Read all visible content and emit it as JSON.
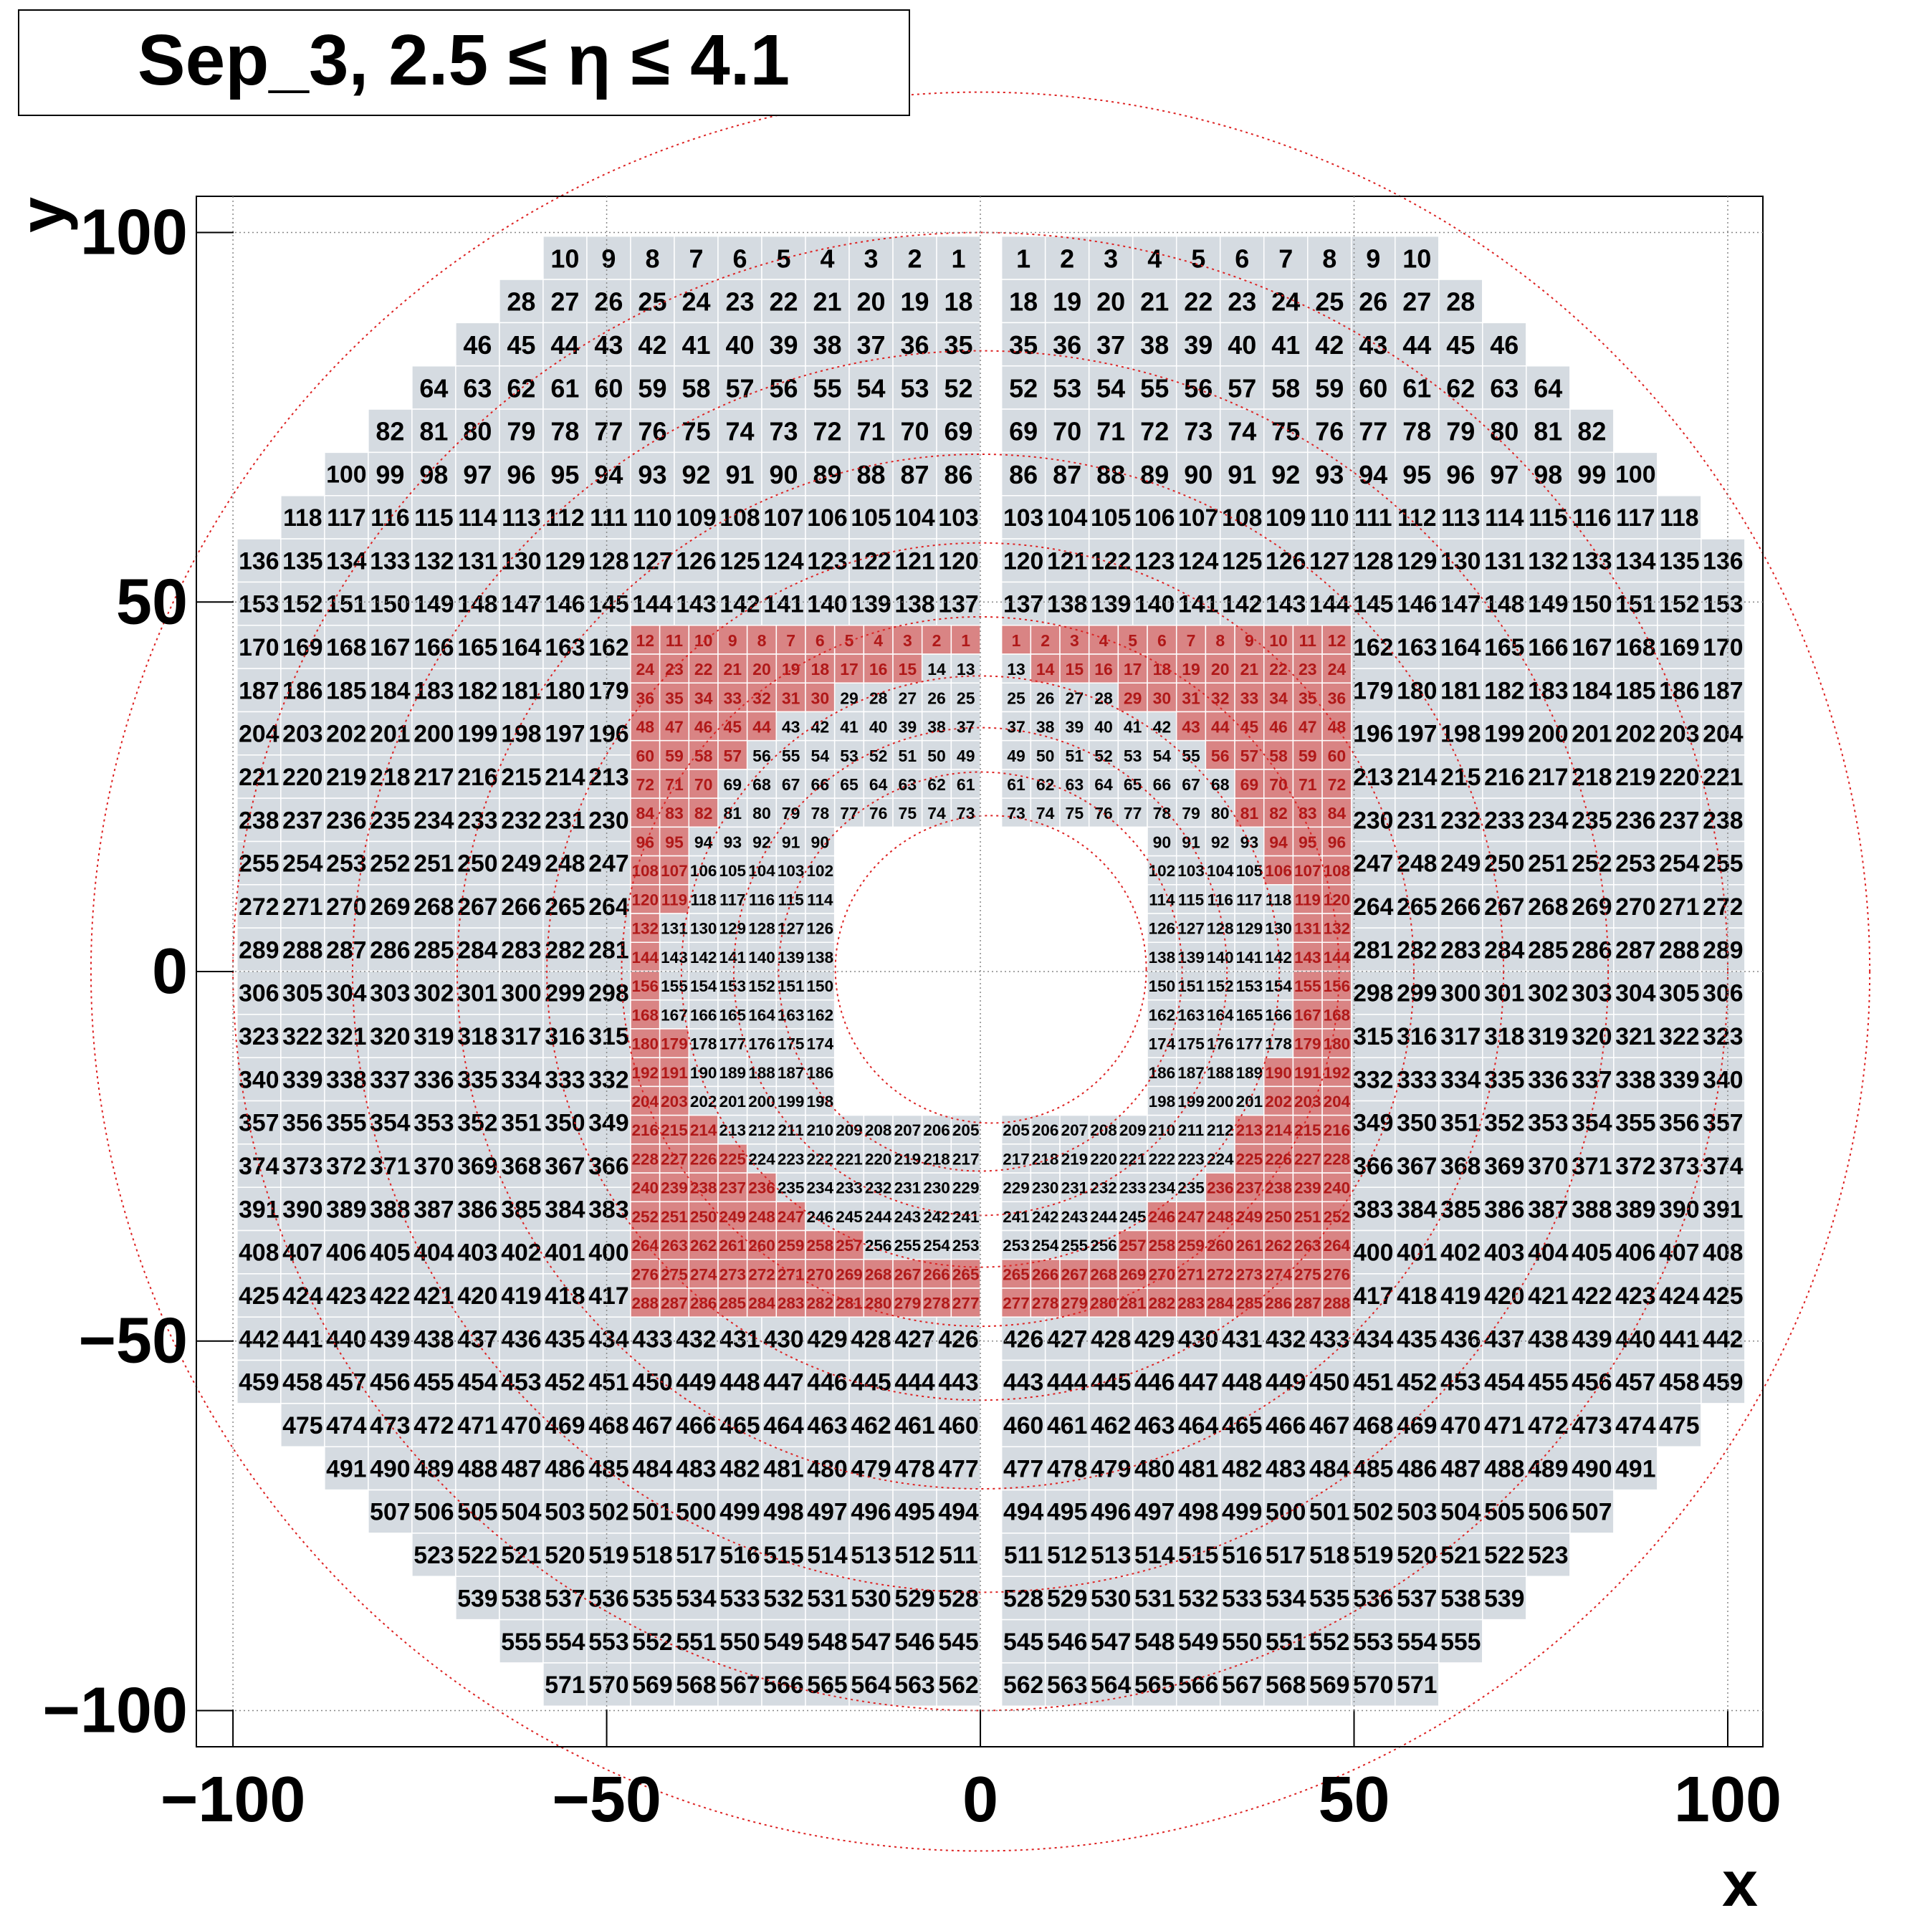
{
  "chart_data": {
    "type": "cellmap",
    "title": "Sep_3, 2.5 ≤ η ≤ 4.1",
    "x_label": "x",
    "y_label": "y",
    "xlim": [
      -104.9,
      104.7
    ],
    "ylim": [
      -104.9,
      104.9
    ],
    "xticks": [
      {
        "value": -100,
        "label": "−100"
      },
      {
        "value": -50,
        "label": "−50"
      },
      0,
      50,
      100
    ],
    "yticks": [
      {
        "value": -100,
        "label": "−100"
      },
      {
        "value": -50,
        "label": "−50"
      },
      0,
      50,
      100
    ],
    "grid": true,
    "cell_color": "#d5dbe1",
    "highlight_color": "#d98484",
    "text_color": "#000000",
    "highlight_text_color": "#b01818",
    "ring_color": "#dd2222",
    "large_left": [
      [
        10,
        9,
        8,
        7,
        6,
        5,
        4,
        3,
        2,
        1
      ],
      [
        28,
        27,
        26,
        25,
        24,
        23,
        22,
        21,
        20,
        19,
        18
      ],
      [
        46,
        45,
        44,
        43,
        42,
        41,
        40,
        39,
        38,
        37,
        36,
        35
      ],
      [
        64,
        63,
        62,
        61,
        60,
        59,
        58,
        57,
        56,
        55,
        54,
        53,
        52
      ],
      [
        82,
        81,
        80,
        79,
        78,
        77,
        76,
        75,
        74,
        73,
        72,
        71,
        70,
        69
      ],
      [
        100,
        99,
        98,
        97,
        96,
        95,
        94,
        93,
        92,
        91,
        90,
        89,
        88,
        87,
        86
      ],
      [
        118,
        117,
        116,
        115,
        114,
        113,
        112,
        111,
        110,
        109,
        108,
        107,
        106,
        105,
        104,
        103
      ],
      [
        136,
        135,
        134,
        133,
        132,
        131,
        130,
        129,
        128,
        127,
        126,
        125,
        124,
        123,
        122,
        121,
        120
      ],
      [
        153,
        152,
        151,
        150,
        149,
        148,
        147,
        146,
        145,
        144,
        143,
        142,
        141,
        140,
        139,
        138,
        137
      ],
      [
        170,
        169,
        168,
        167,
        166,
        165,
        164,
        163,
        162
      ],
      [
        187,
        186,
        185,
        184,
        183,
        182,
        181,
        180,
        179
      ],
      [
        204,
        203,
        202,
        201,
        200,
        199,
        198,
        197,
        196
      ],
      [
        221,
        220,
        219,
        218,
        217,
        216,
        215,
        214,
        213
      ],
      [
        238,
        237,
        236,
        235,
        234,
        233,
        232,
        231,
        230
      ],
      [
        255,
        254,
        253,
        252,
        251,
        250,
        249,
        248,
        247
      ],
      [
        272,
        271,
        270,
        269,
        268,
        267,
        266,
        265,
        264
      ],
      [
        289,
        288,
        287,
        286,
        285,
        284,
        283,
        282,
        281
      ],
      [
        306,
        305,
        304,
        303,
        302,
        301,
        300,
        299,
        298
      ],
      [
        323,
        322,
        321,
        320,
        319,
        318,
        317,
        316,
        315
      ],
      [
        340,
        339,
        338,
        337,
        336,
        335,
        334,
        333,
        332
      ],
      [
        357,
        356,
        355,
        354,
        353,
        352,
        351,
        350,
        349
      ],
      [
        374,
        373,
        372,
        371,
        370,
        369,
        368,
        367,
        366
      ],
      [
        391,
        390,
        389,
        388,
        387,
        386,
        385,
        384,
        383
      ],
      [
        408,
        407,
        406,
        405,
        404,
        403,
        402,
        401,
        400
      ],
      [
        425,
        424,
        423,
        422,
        421,
        420,
        419,
        418,
        417
      ],
      [
        442,
        441,
        440,
        439,
        438,
        437,
        436,
        435,
        434,
        433,
        432,
        431,
        430,
        429,
        428,
        427,
        426
      ],
      [
        459,
        458,
        457,
        456,
        455,
        454,
        453,
        452,
        451,
        450,
        449,
        448,
        447,
        446,
        445,
        444,
        443
      ],
      [
        475,
        474,
        473,
        472,
        471,
        470,
        469,
        468,
        467,
        466,
        465,
        464,
        463,
        462,
        461,
        460
      ],
      [
        491,
        490,
        489,
        488,
        487,
        486,
        485,
        484,
        483,
        482,
        481,
        480,
        479,
        478,
        477
      ],
      [
        507,
        506,
        505,
        504,
        503,
        502,
        501,
        500,
        499,
        498,
        497,
        496,
        495,
        494
      ],
      [
        523,
        522,
        521,
        520,
        519,
        518,
        517,
        516,
        515,
        514,
        513,
        512,
        511
      ],
      [
        539,
        538,
        537,
        536,
        535,
        534,
        533,
        532,
        531,
        530,
        529,
        528
      ],
      [
        555,
        554,
        553,
        552,
        551,
        550,
        549,
        548,
        547,
        546,
        545
      ],
      [
        571,
        570,
        569,
        568,
        567,
        566,
        565,
        564,
        563,
        562
      ]
    ],
    "large_right": [
      [
        1,
        2,
        3,
        4,
        5,
        6,
        7,
        8,
        9,
        10
      ],
      [
        18,
        19,
        20,
        21,
        22,
        23,
        24,
        25,
        26,
        27,
        28
      ],
      [
        35,
        36,
        37,
        38,
        39,
        40,
        41,
        42,
        43,
        44,
        45,
        46
      ],
      [
        52,
        53,
        54,
        55,
        56,
        57,
        58,
        59,
        60,
        61,
        62,
        63,
        64
      ],
      [
        69,
        70,
        71,
        72,
        73,
        74,
        75,
        76,
        77,
        78,
        79,
        80,
        81,
        82
      ],
      [
        86,
        87,
        88,
        89,
        90,
        91,
        92,
        93,
        94,
        95,
        96,
        97,
        98,
        99,
        100
      ],
      [
        103,
        104,
        105,
        106,
        107,
        108,
        109,
        110,
        111,
        112,
        113,
        114,
        115,
        116,
        117,
        118
      ],
      [
        120,
        121,
        122,
        123,
        124,
        125,
        126,
        127,
        128,
        129,
        130,
        131,
        132,
        133,
        134,
        135,
        136
      ],
      [
        137,
        138,
        139,
        140,
        141,
        142,
        143,
        144,
        145,
        146,
        147,
        148,
        149,
        150,
        151,
        152,
        153
      ],
      [
        162,
        163,
        164,
        165,
        166,
        167,
        168,
        169,
        170
      ],
      [
        179,
        180,
        181,
        182,
        183,
        184,
        185,
        186,
        187
      ],
      [
        196,
        197,
        198,
        199,
        200,
        201,
        202,
        203,
        204
      ],
      [
        213,
        214,
        215,
        216,
        217,
        218,
        219,
        220,
        221
      ],
      [
        230,
        231,
        232,
        233,
        234,
        235,
        236,
        237,
        238
      ],
      [
        247,
        248,
        249,
        250,
        251,
        252,
        253,
        254,
        255
      ],
      [
        264,
        265,
        266,
        267,
        268,
        269,
        270,
        271,
        272
      ],
      [
        281,
        282,
        283,
        284,
        285,
        286,
        287,
        288,
        289
      ],
      [
        298,
        299,
        300,
        301,
        302,
        303,
        304,
        305,
        306
      ],
      [
        315,
        316,
        317,
        318,
        319,
        320,
        321,
        322,
        323
      ],
      [
        332,
        333,
        334,
        335,
        336,
        337,
        338,
        339,
        340
      ],
      [
        349,
        350,
        351,
        352,
        353,
        354,
        355,
        356,
        357
      ],
      [
        366,
        367,
        368,
        369,
        370,
        371,
        372,
        373,
        374
      ],
      [
        383,
        384,
        385,
        386,
        387,
        388,
        389,
        390,
        391
      ],
      [
        400,
        401,
        402,
        403,
        404,
        405,
        406,
        407,
        408
      ],
      [
        417,
        418,
        419,
        420,
        421,
        422,
        423,
        424,
        425
      ],
      [
        426,
        427,
        428,
        429,
        430,
        431,
        432,
        433,
        434,
        435,
        436,
        437,
        438,
        439,
        440,
        441,
        442
      ],
      [
        443,
        444,
        445,
        446,
        447,
        448,
        449,
        450,
        451,
        452,
        453,
        454,
        455,
        456,
        457,
        458,
        459
      ],
      [
        460,
        461,
        462,
        463,
        464,
        465,
        466,
        467,
        468,
        469,
        470,
        471,
        472,
        473,
        474,
        475
      ],
      [
        477,
        478,
        479,
        480,
        481,
        482,
        483,
        484,
        485,
        486,
        487,
        488,
        489,
        490,
        491
      ],
      [
        494,
        495,
        496,
        497,
        498,
        499,
        500,
        501,
        502,
        503,
        504,
        505,
        506,
        507
      ],
      [
        511,
        512,
        513,
        514,
        515,
        516,
        517,
        518,
        519,
        520,
        521,
        522,
        523
      ],
      [
        528,
        529,
        530,
        531,
        532,
        533,
        534,
        535,
        536,
        537,
        538,
        539
      ],
      [
        545,
        546,
        547,
        548,
        549,
        550,
        551,
        552,
        553,
        554,
        555
      ],
      [
        562,
        563,
        564,
        565,
        566,
        567,
        568,
        569,
        570,
        571
      ]
    ],
    "small_left": [
      [
        12,
        11,
        10,
        9,
        8,
        7,
        6,
        5,
        4,
        3,
        2,
        1
      ],
      [
        24,
        23,
        22,
        21,
        20,
        19,
        18,
        17,
        16,
        15,
        14,
        13
      ],
      [
        36,
        35,
        34,
        33,
        32,
        31,
        30,
        29,
        28,
        27,
        26,
        25
      ],
      [
        48,
        47,
        46,
        45,
        44,
        43,
        42,
        41,
        40,
        39,
        38,
        37
      ],
      [
        60,
        59,
        58,
        57,
        56,
        55,
        54,
        53,
        52,
        51,
        50,
        49
      ],
      [
        72,
        71,
        70,
        69,
        68,
        67,
        66,
        65,
        64,
        63,
        62,
        61
      ],
      [
        84,
        83,
        82,
        81,
        80,
        79,
        78,
        77,
        76,
        75,
        74,
        73
      ],
      [
        96,
        95,
        94,
        93,
        92,
        91,
        90
      ],
      [
        108,
        107,
        106,
        105,
        104,
        103,
        102
      ],
      [
        120,
        119,
        118,
        117,
        116,
        115,
        114
      ],
      [
        132,
        131,
        130,
        129,
        128,
        127,
        126
      ],
      [
        144,
        143,
        142,
        141,
        140,
        139,
        138
      ],
      [
        156,
        155,
        154,
        153,
        152,
        151,
        150
      ],
      [
        168,
        167,
        166,
        165,
        164,
        163,
        162
      ],
      [
        180,
        179,
        178,
        177,
        176,
        175,
        174
      ],
      [
        192,
        191,
        190,
        189,
        188,
        187,
        186
      ],
      [
        204,
        203,
        202,
        201,
        200,
        199,
        198
      ],
      [
        216,
        215,
        214,
        213,
        212,
        211,
        210,
        209,
        208,
        207,
        206,
        205
      ],
      [
        228,
        227,
        226,
        225,
        224,
        223,
        222,
        221,
        220,
        219,
        218,
        217
      ],
      [
        240,
        239,
        238,
        237,
        236,
        235,
        234,
        233,
        232,
        231,
        230,
        229
      ],
      [
        252,
        251,
        250,
        249,
        248,
        247,
        246,
        245,
        244,
        243,
        242,
        241
      ],
      [
        264,
        263,
        262,
        261,
        260,
        259,
        258,
        257,
        256,
        255,
        254,
        253
      ],
      [
        276,
        275,
        274,
        273,
        272,
        271,
        270,
        269,
        268,
        267,
        266,
        265
      ],
      [
        288,
        287,
        286,
        285,
        284,
        283,
        282,
        281,
        280,
        279,
        278,
        277
      ]
    ],
    "small_left_highlighted": [
      12,
      10,
      7,
      5,
      4,
      3,
      3,
      2,
      2,
      2,
      1,
      1,
      1,
      1,
      2,
      2,
      2,
      3,
      4,
      5,
      6,
      8,
      12,
      12
    ],
    "small_right": [
      [
        1,
        2,
        3,
        4,
        5,
        6,
        7,
        8,
        9,
        10,
        11,
        12
      ],
      [
        13,
        14,
        15,
        16,
        17,
        18,
        19,
        20,
        21,
        22,
        23,
        24
      ],
      [
        25,
        26,
        27,
        28,
        29,
        30,
        31,
        32,
        33,
        34,
        35,
        36
      ],
      [
        37,
        38,
        39,
        40,
        41,
        42,
        43,
        44,
        45,
        46,
        47,
        48
      ],
      [
        49,
        50,
        51,
        52,
        53,
        54,
        55,
        56,
        57,
        58,
        59,
        60
      ],
      [
        61,
        62,
        63,
        64,
        65,
        66,
        67,
        68,
        69,
        70,
        71,
        72
      ],
      [
        73,
        74,
        75,
        76,
        77,
        78,
        79,
        80,
        81,
        82,
        83,
        84
      ],
      [
        90,
        91,
        92,
        93,
        94,
        95,
        96
      ],
      [
        102,
        103,
        104,
        105,
        106,
        107,
        108
      ],
      [
        114,
        115,
        116,
        117,
        118,
        119,
        120
      ],
      [
        126,
        127,
        128,
        129,
        130,
        131,
        132
      ],
      [
        138,
        139,
        140,
        141,
        142,
        143,
        144
      ],
      [
        150,
        151,
        152,
        153,
        154,
        155,
        156
      ],
      [
        162,
        163,
        164,
        165,
        166,
        167,
        168
      ],
      [
        174,
        175,
        176,
        177,
        178,
        179,
        180
      ],
      [
        186,
        187,
        188,
        189,
        190,
        191,
        192
      ],
      [
        198,
        199,
        200,
        201,
        202,
        203,
        204
      ],
      [
        205,
        206,
        207,
        208,
        209,
        210,
        211,
        212,
        213,
        214,
        215,
        216
      ],
      [
        217,
        218,
        219,
        220,
        221,
        222,
        223,
        224,
        225,
        226,
        227,
        228
      ],
      [
        229,
        230,
        231,
        232,
        233,
        234,
        235,
        236,
        237,
        238,
        239,
        240
      ],
      [
        241,
        242,
        243,
        244,
        245,
        246,
        247,
        248,
        249,
        250,
        251,
        252
      ],
      [
        253,
        254,
        255,
        256,
        257,
        258,
        259,
        260,
        261,
        262,
        263,
        264
      ],
      [
        265,
        266,
        267,
        268,
        269,
        270,
        271,
        272,
        273,
        274,
        275,
        276
      ],
      [
        277,
        278,
        279,
        280,
        281,
        282,
        283,
        284,
        285,
        286,
        287,
        288
      ]
    ],
    "small_right_highlighted": [
      12,
      11,
      8,
      6,
      5,
      4,
      4,
      3,
      3,
      2,
      2,
      2,
      2,
      2,
      2,
      3,
      3,
      4,
      4,
      5,
      7,
      8,
      12,
      12
    ]
  }
}
